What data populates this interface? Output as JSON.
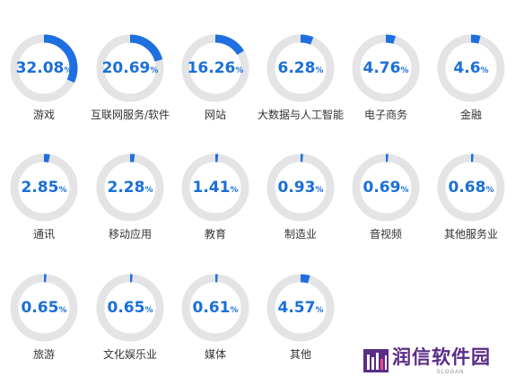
{
  "chart_data": {
    "type": "donut-grid",
    "title": "",
    "unit": "%",
    "categories": [
      "游戏",
      "互联网服务/软件",
      "网站",
      "大数据与人工智能",
      "电子商务",
      "金融",
      "通讯",
      "移动应用",
      "教育",
      "制造业",
      "音视频",
      "其他服务业",
      "旅游",
      "文化娱乐业",
      "媒体",
      "其他"
    ],
    "values": [
      32.08,
      20.69,
      16.26,
      6.28,
      4.76,
      4.6,
      2.85,
      2.28,
      1.41,
      0.93,
      0.69,
      0.68,
      0.65,
      0.65,
      0.61,
      4.57
    ],
    "value_labels": [
      "32.08",
      "20.69",
      "16.26",
      "6.28",
      "4.76",
      "4.6",
      "2.85",
      "2.28",
      "1.41",
      "0.93",
      "0.69",
      "0.68",
      "0.65",
      "0.65",
      "0.61",
      "4.57"
    ],
    "max": 100,
    "colors": {
      "fill": "#1e6fe0",
      "track": "#e4e4e6",
      "value_text": "#1a6fd8",
      "label_text": "#333333"
    }
  },
  "watermark": {
    "title": "润信软件园",
    "slogan": "SLOGAN",
    "color": "#5a2c86"
  }
}
